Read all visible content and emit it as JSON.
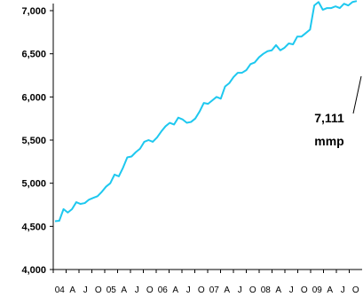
{
  "chart_data": {
    "type": "line",
    "title": "",
    "xlabel": "",
    "ylabel": "",
    "ylim": [
      4000,
      7000
    ],
    "yticks": [
      4000,
      4500,
      5000,
      5500,
      6000,
      6500,
      7000
    ],
    "ytick_labels": [
      "4,000",
      "4,500",
      "5,000",
      "5,500",
      "6,000",
      "6,500",
      "7,000"
    ],
    "xtick_labels": [
      "04",
      "A",
      "J",
      "O",
      "05",
      "A",
      "J",
      "O",
      "06",
      "A",
      "J",
      "O",
      "07",
      "A",
      "J",
      "O",
      "08",
      "A",
      "J",
      "O",
      "09",
      "A",
      "J",
      "O"
    ],
    "grid": false,
    "series": [
      {
        "color": "#1ec8ef",
        "values": [
          4560,
          4565,
          4700,
          4660,
          4700,
          4780,
          4760,
          4770,
          4810,
          4830,
          4850,
          4900,
          4960,
          5000,
          5100,
          5080,
          5180,
          5300,
          5310,
          5360,
          5400,
          5480,
          5500,
          5480,
          5530,
          5600,
          5660,
          5700,
          5680,
          5760,
          5740,
          5700,
          5710,
          5750,
          5830,
          5930,
          5920,
          5960,
          6000,
          5980,
          6120,
          6160,
          6230,
          6280,
          6280,
          6310,
          6380,
          6400,
          6460,
          6500,
          6530,
          6540,
          6600,
          6540,
          6570,
          6620,
          6610,
          6700,
          6700,
          6740,
          6780,
          7060,
          7100,
          7010,
          7030,
          7030,
          7050,
          7030,
          7080,
          7060,
          7100,
          7111
        ]
      }
    ],
    "annotation": {
      "value": "7,111",
      "unit": "mmp"
    }
  }
}
